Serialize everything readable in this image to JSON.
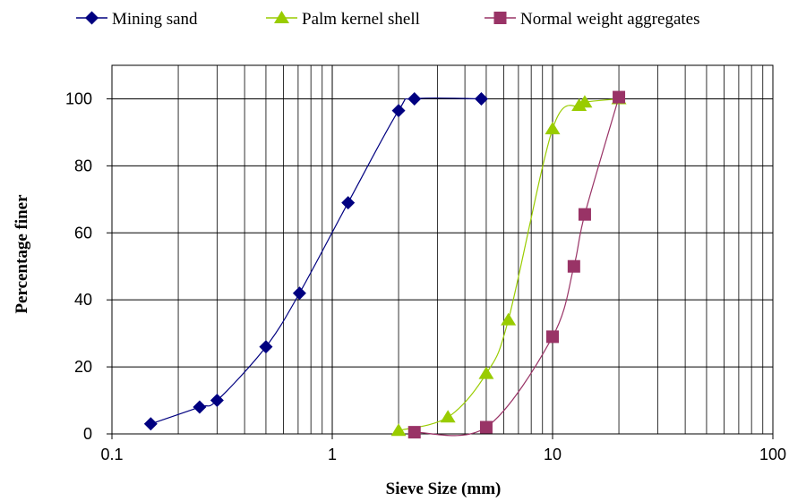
{
  "chart_data": {
    "type": "line",
    "title": "",
    "xlabel": "Sieve Size (mm)",
    "ylabel": "Percentage  finer",
    "x_scale": "log",
    "xlim": [
      0.1,
      100
    ],
    "ylim": [
      0,
      110
    ],
    "x_ticks": [
      0.1,
      1,
      10,
      100
    ],
    "x_tick_labels": [
      "0.1",
      "1",
      "10",
      "100"
    ],
    "y_ticks": [
      0,
      20,
      40,
      60,
      80,
      100
    ],
    "y_tick_labels": [
      "0",
      "20",
      "40",
      "60",
      "80",
      "100"
    ],
    "grid": true,
    "legend_position": "top",
    "series": [
      {
        "name": "Mining sand",
        "color": "#000080",
        "marker": "diamond",
        "points": [
          [
            0.15,
            3
          ],
          [
            0.25,
            8
          ],
          [
            0.3,
            10
          ],
          [
            0.5,
            26
          ],
          [
            0.71,
            42
          ],
          [
            1.18,
            69
          ],
          [
            2,
            96.5
          ],
          [
            2.36,
            100
          ],
          [
            4.75,
            100
          ]
        ]
      },
      {
        "name": "Palm kernel shell",
        "color": "#99cc00",
        "marker": "triangle",
        "points": [
          [
            2,
            1
          ],
          [
            3.35,
            5
          ],
          [
            5,
            18
          ],
          [
            6.3,
            34
          ],
          [
            10,
            91
          ],
          [
            13.2,
            98
          ],
          [
            14,
            99
          ],
          [
            20,
            100
          ]
        ]
      },
      {
        "name": "Normal weight aggregates",
        "color": "#993366",
        "marker": "square",
        "points": [
          [
            2.36,
            0.5
          ],
          [
            5,
            2
          ],
          [
            10,
            29
          ],
          [
            12.5,
            50
          ],
          [
            14,
            65.5
          ],
          [
            20,
            100.5
          ]
        ]
      }
    ]
  }
}
